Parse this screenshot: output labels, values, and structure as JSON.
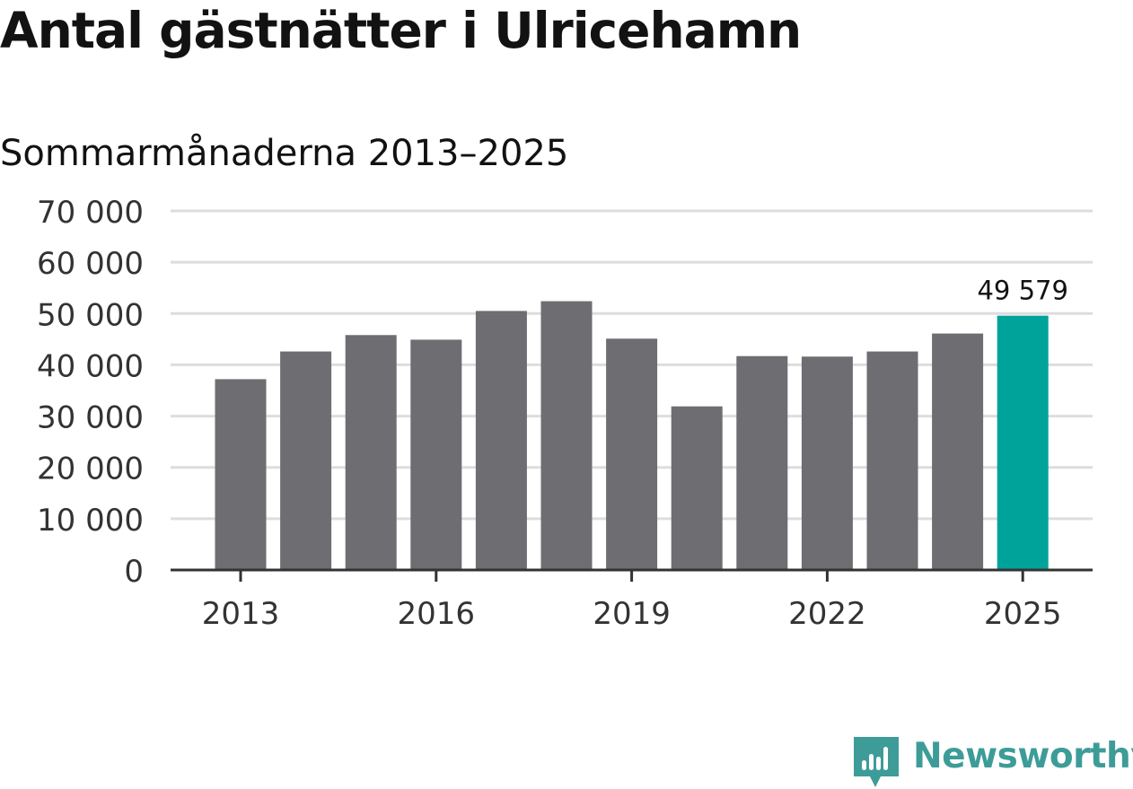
{
  "header": {
    "title": "Antal gästnätter i Ulricehamn",
    "subtitle": "Sommarmånaderna 2013–2025"
  },
  "brand": {
    "name": "Newsworthy",
    "icon": "newsworthy-logo-icon",
    "color": "#3d9c98"
  },
  "colors": {
    "bar": "#6e6d72",
    "highlight": "#00a39a",
    "grid": "#dddddd",
    "axis": "#333333"
  },
  "chart_data": {
    "type": "bar",
    "title": "Antal gästnätter i Ulricehamn",
    "subtitle": "Sommarmånaderna 2013–2025",
    "xlabel": "",
    "ylabel": "",
    "categories": [
      "2013",
      "2014",
      "2015",
      "2016",
      "2017",
      "2018",
      "2019",
      "2020",
      "2021",
      "2022",
      "2023",
      "2024",
      "2025"
    ],
    "values": [
      37200,
      42600,
      45800,
      44900,
      50500,
      52400,
      45100,
      31900,
      41700,
      41600,
      42600,
      46100,
      49579
    ],
    "highlight_index": 12,
    "highlight_label": "49 579",
    "ylim": [
      0,
      70000
    ],
    "yticks": [
      0,
      10000,
      20000,
      30000,
      40000,
      50000,
      60000,
      70000
    ],
    "ytick_labels": [
      "0",
      "10 000",
      "20 000",
      "30 000",
      "40 000",
      "50 000",
      "60 000",
      "70 000"
    ],
    "xtick_labels": [
      "2013",
      "2016",
      "2019",
      "2022",
      "2025"
    ],
    "grid": true,
    "legend": "none"
  }
}
